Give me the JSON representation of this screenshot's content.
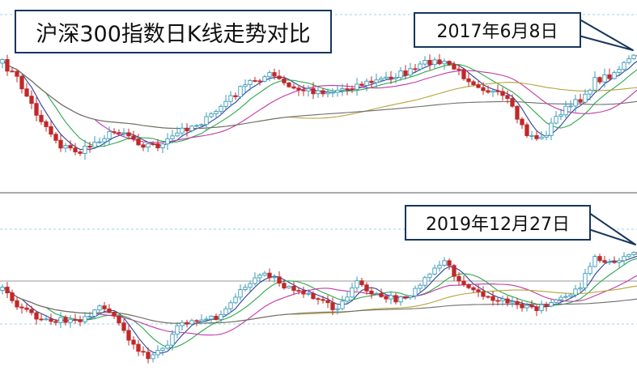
{
  "chart_data": [
    {
      "type": "candlestick",
      "title": "沪深300指数日K线走势对比",
      "end_label": "2017年6月8日",
      "colors": {
        "up": "#3a9bb8",
        "down": "#c0282a",
        "ma5": "#2f3f9a",
        "ma10": "#2aa84a",
        "ma20": "#c03aa8",
        "ma60": "#b7a33a",
        "ma120": "#6e6e6e"
      }
    },
    {
      "type": "candlestick",
      "end_label": "2019年12月27日",
      "colors": {
        "up": "#3a9bb8",
        "down": "#c0282a",
        "ma5": "#2f3f9a",
        "ma10": "#2aa84a",
        "ma20": "#c03aa8",
        "ma60": "#b7a33a",
        "ma120": "#6e6e6e"
      }
    }
  ]
}
